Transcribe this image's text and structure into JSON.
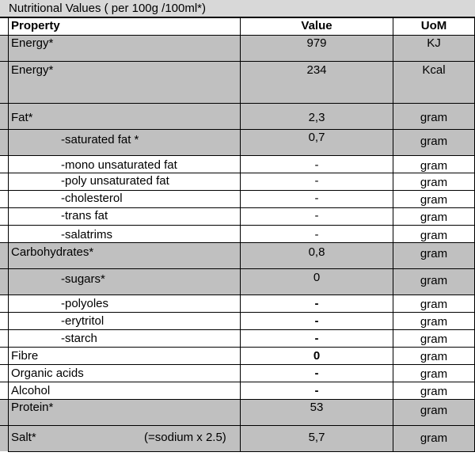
{
  "title": "Nutritional Values ( per 100g /100ml*)",
  "headers": {
    "property": "Property",
    "value": "Value",
    "uom": "UoM"
  },
  "rows": [
    {
      "property": "Energy*",
      "value": "979",
      "uom": "KJ"
    },
    {
      "property": "Energy*",
      "value": "234",
      "uom": "Kcal"
    },
    {
      "property": "Fat*",
      "value": "2,3",
      "uom": "gram"
    },
    {
      "property": "-saturated fat *",
      "value": "0,7",
      "uom": "gram"
    },
    {
      "property": "-mono unsaturated fat",
      "value": "-",
      "uom": "gram"
    },
    {
      "property": "-poly unsaturated fat",
      "value": "-",
      "uom": "gram"
    },
    {
      "property": "-cholesterol",
      "value": "-",
      "uom": "gram"
    },
    {
      "property": "-trans fat",
      "value": "-",
      "uom": "gram"
    },
    {
      "property": "-salatrims",
      "value": "-",
      "uom": "gram"
    },
    {
      "property": "Carbohydrates*",
      "value": "0,8",
      "uom": "gram"
    },
    {
      "property": "-sugars*",
      "value": "0",
      "uom": "gram"
    },
    {
      "property": "-polyoles",
      "value": "-",
      "uom": "gram"
    },
    {
      "property": "-erytritol",
      "value": "-",
      "uom": "gram"
    },
    {
      "property": "-starch",
      "value": "-",
      "uom": "gram"
    },
    {
      "property": "Fibre",
      "value": "0",
      "uom": "gram"
    },
    {
      "property": "Organic acids",
      "value": "-",
      "uom": "gram"
    },
    {
      "property": "Alcohol",
      "value": "-",
      "uom": "gram"
    },
    {
      "property": "Protein*",
      "value": "53",
      "uom": "gram"
    },
    {
      "property": "Salt*",
      "value": "5,7",
      "uom": "gram",
      "note": "(=sodium x 2.5)"
    }
  ]
}
